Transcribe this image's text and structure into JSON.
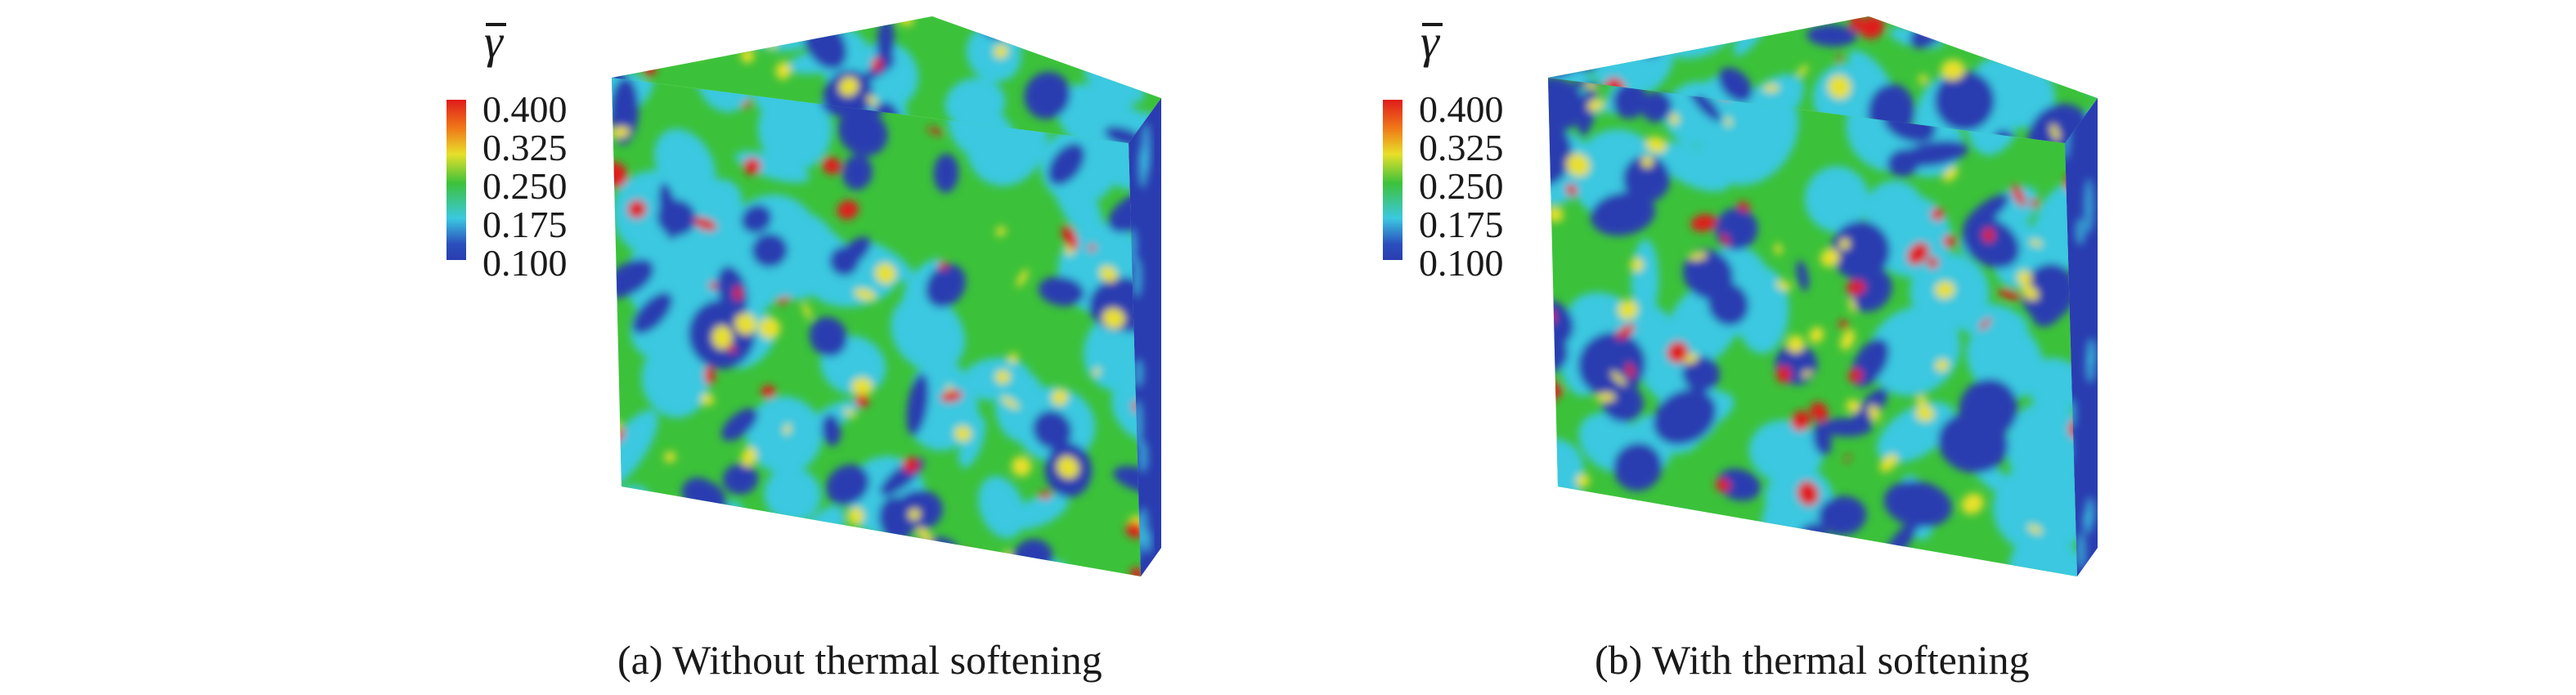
{
  "figure": {
    "colorbar": {
      "symbol": "γ",
      "ticks": [
        "0.400",
        "0.325",
        "0.250",
        "0.175",
        "0.100"
      ],
      "colors": [
        "#e01b1b",
        "#e8e02a",
        "#3cc23a",
        "#3bc8e0",
        "#2a3db0"
      ]
    },
    "panels": [
      {
        "caption": "(a) Without thermal softening"
      },
      {
        "caption": "(b) With thermal softening"
      }
    ]
  }
}
